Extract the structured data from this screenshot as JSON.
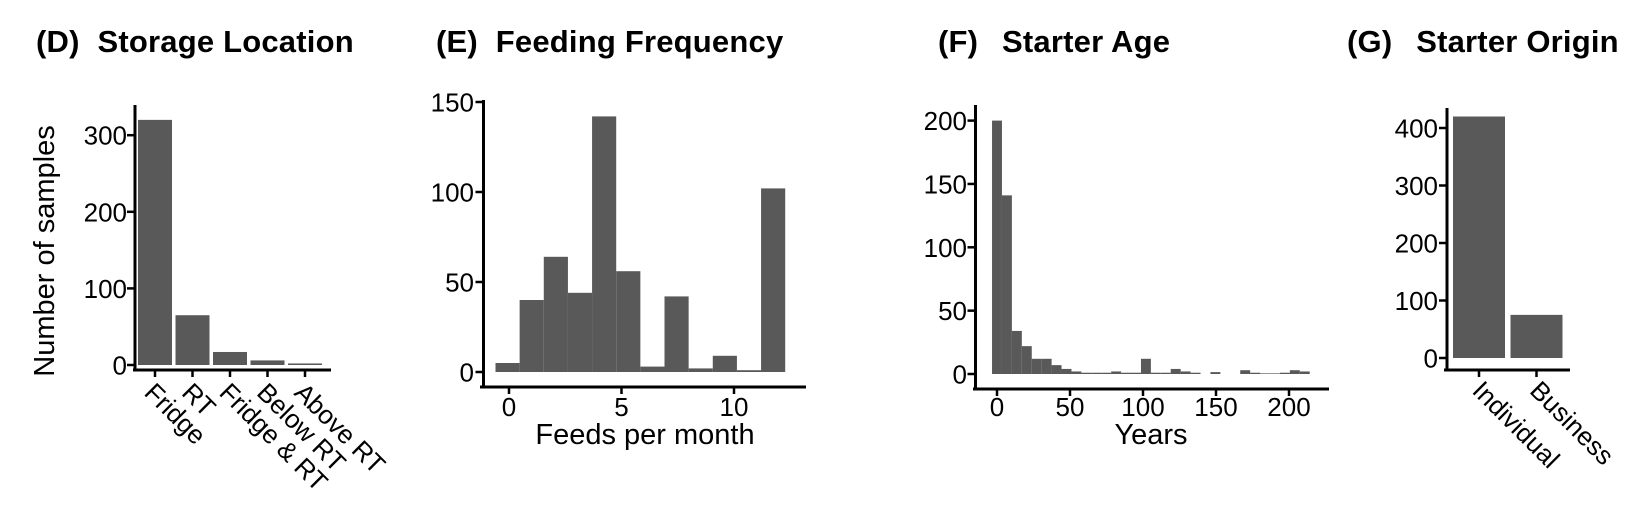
{
  "figure": {
    "background": "#ffffff",
    "bar_color": "#595959",
    "axis_color": "#000000",
    "text_color": "#000000"
  },
  "chart_data": [
    {
      "id": "D",
      "type": "bar",
      "panel_tag": "(D)",
      "title": "Storage Location",
      "ylabel": "Number of samples",
      "xlabel": "",
      "categories": [
        "Fridge",
        "RT",
        "Fridge & RT",
        "Below RT",
        "Above RT"
      ],
      "values": [
        320,
        65,
        17,
        6,
        2
      ],
      "yticks": [
        0,
        100,
        200,
        300
      ],
      "ylim": [
        0,
        330
      ],
      "xtick_label_angle": 45,
      "legend": "none",
      "grid": "off"
    },
    {
      "id": "E",
      "type": "histogram",
      "panel_tag": "(E)",
      "title": "Feeding Frequency",
      "ylabel": "",
      "xlabel": "Feeds per month",
      "bin_start": -0.6,
      "bin_width": 1.073,
      "values": [
        5,
        40,
        64,
        44,
        142,
        56,
        3,
        42,
        2,
        9,
        1,
        102
      ],
      "xticks": [
        0,
        5,
        10
      ],
      "yticks": [
        0,
        50,
        100,
        150
      ],
      "xlim": [
        -1.3,
        13.2
      ],
      "ylim": [
        0,
        150
      ],
      "legend": "none",
      "grid": "off"
    },
    {
      "id": "F",
      "type": "histogram",
      "panel_tag": "(F)",
      "title": "Starter Age",
      "ylabel": "",
      "xlabel": "Years",
      "bin_start": -3.4,
      "bin_width": 6.8,
      "values": [
        200,
        141,
        34,
        22,
        12,
        12,
        7,
        4,
        2,
        1,
        1,
        1,
        2,
        1,
        1,
        12,
        1,
        1,
        4,
        2,
        1,
        0,
        1.5,
        0,
        0,
        3,
        1,
        0.5,
        0.5,
        1,
        3,
        2
      ],
      "xticks": [
        0,
        50,
        100,
        150,
        200
      ],
      "yticks": [
        0,
        50,
        100,
        150,
        200
      ],
      "xlim": [
        -15,
        230
      ],
      "ylim": [
        0,
        210
      ],
      "legend": "none",
      "grid": "off"
    },
    {
      "id": "G",
      "type": "bar",
      "panel_tag": "(G)",
      "title": "Starter Origin",
      "ylabel": "",
      "xlabel": "",
      "categories": [
        "Individual",
        "Business"
      ],
      "values": [
        420,
        75
      ],
      "yticks": [
        0,
        100,
        200,
        300,
        400
      ],
      "ylim": [
        0,
        430
      ],
      "xtick_label_angle": 45,
      "legend": "none",
      "grid": "off"
    }
  ]
}
